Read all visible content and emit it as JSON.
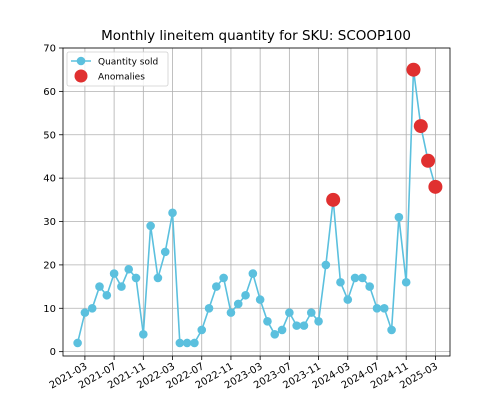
{
  "chart_data": {
    "type": "line",
    "title": "Monthly lineitem quantity for SKU: SCOOP100",
    "xlabel": "",
    "ylabel": "",
    "ylim": [
      -1,
      70
    ],
    "xlim": [
      "2020-12",
      "2025-05"
    ],
    "grid": true,
    "legend_position": "top-left",
    "yticks": [
      0,
      10,
      20,
      30,
      40,
      50,
      60,
      70
    ],
    "xticks": [
      "2021-03",
      "2021-07",
      "2021-11",
      "2022-03",
      "2022-07",
      "2022-11",
      "2023-03",
      "2023-07",
      "2023-11",
      "2024-03",
      "2024-07",
      "2024-11",
      "2025-03"
    ],
    "colors": {
      "series": "#5bc0de",
      "anomaly": "#e03030",
      "grid": "#b0b0b0"
    },
    "series": [
      {
        "name": "Quantity sold",
        "x": [
          "2021-02",
          "2021-03",
          "2021-04",
          "2021-05",
          "2021-06",
          "2021-07",
          "2021-08",
          "2021-09",
          "2021-10",
          "2021-11",
          "2021-12",
          "2022-01",
          "2022-02",
          "2022-03",
          "2022-04",
          "2022-05",
          "2022-06",
          "2022-07",
          "2022-08",
          "2022-09",
          "2022-10",
          "2022-11",
          "2022-12",
          "2023-01",
          "2023-02",
          "2023-03",
          "2023-04",
          "2023-05",
          "2023-06",
          "2023-07",
          "2023-08",
          "2023-09",
          "2023-10",
          "2023-11",
          "2023-12",
          "2024-01",
          "2024-02",
          "2024-03",
          "2024-04",
          "2024-05",
          "2024-06",
          "2024-07",
          "2024-08",
          "2024-09",
          "2024-10",
          "2024-11",
          "2024-12",
          "2025-01",
          "2025-02",
          "2025-03"
        ],
        "values": [
          2,
          9,
          10,
          15,
          13,
          18,
          15,
          19,
          17,
          4,
          29,
          17,
          23,
          32,
          2,
          2,
          2,
          5,
          10,
          15,
          17,
          9,
          11,
          13,
          18,
          12,
          7,
          4,
          5,
          9,
          6,
          6,
          9,
          7,
          20,
          35,
          16,
          12,
          17,
          17,
          15,
          10,
          10,
          5,
          31,
          16,
          65,
          52,
          44,
          38
        ]
      },
      {
        "name": "Anomalies",
        "x": [
          "2024-01",
          "2024-12",
          "2025-01",
          "2025-02",
          "2025-03"
        ],
        "values": [
          35,
          65,
          52,
          44,
          38
        ]
      }
    ]
  }
}
